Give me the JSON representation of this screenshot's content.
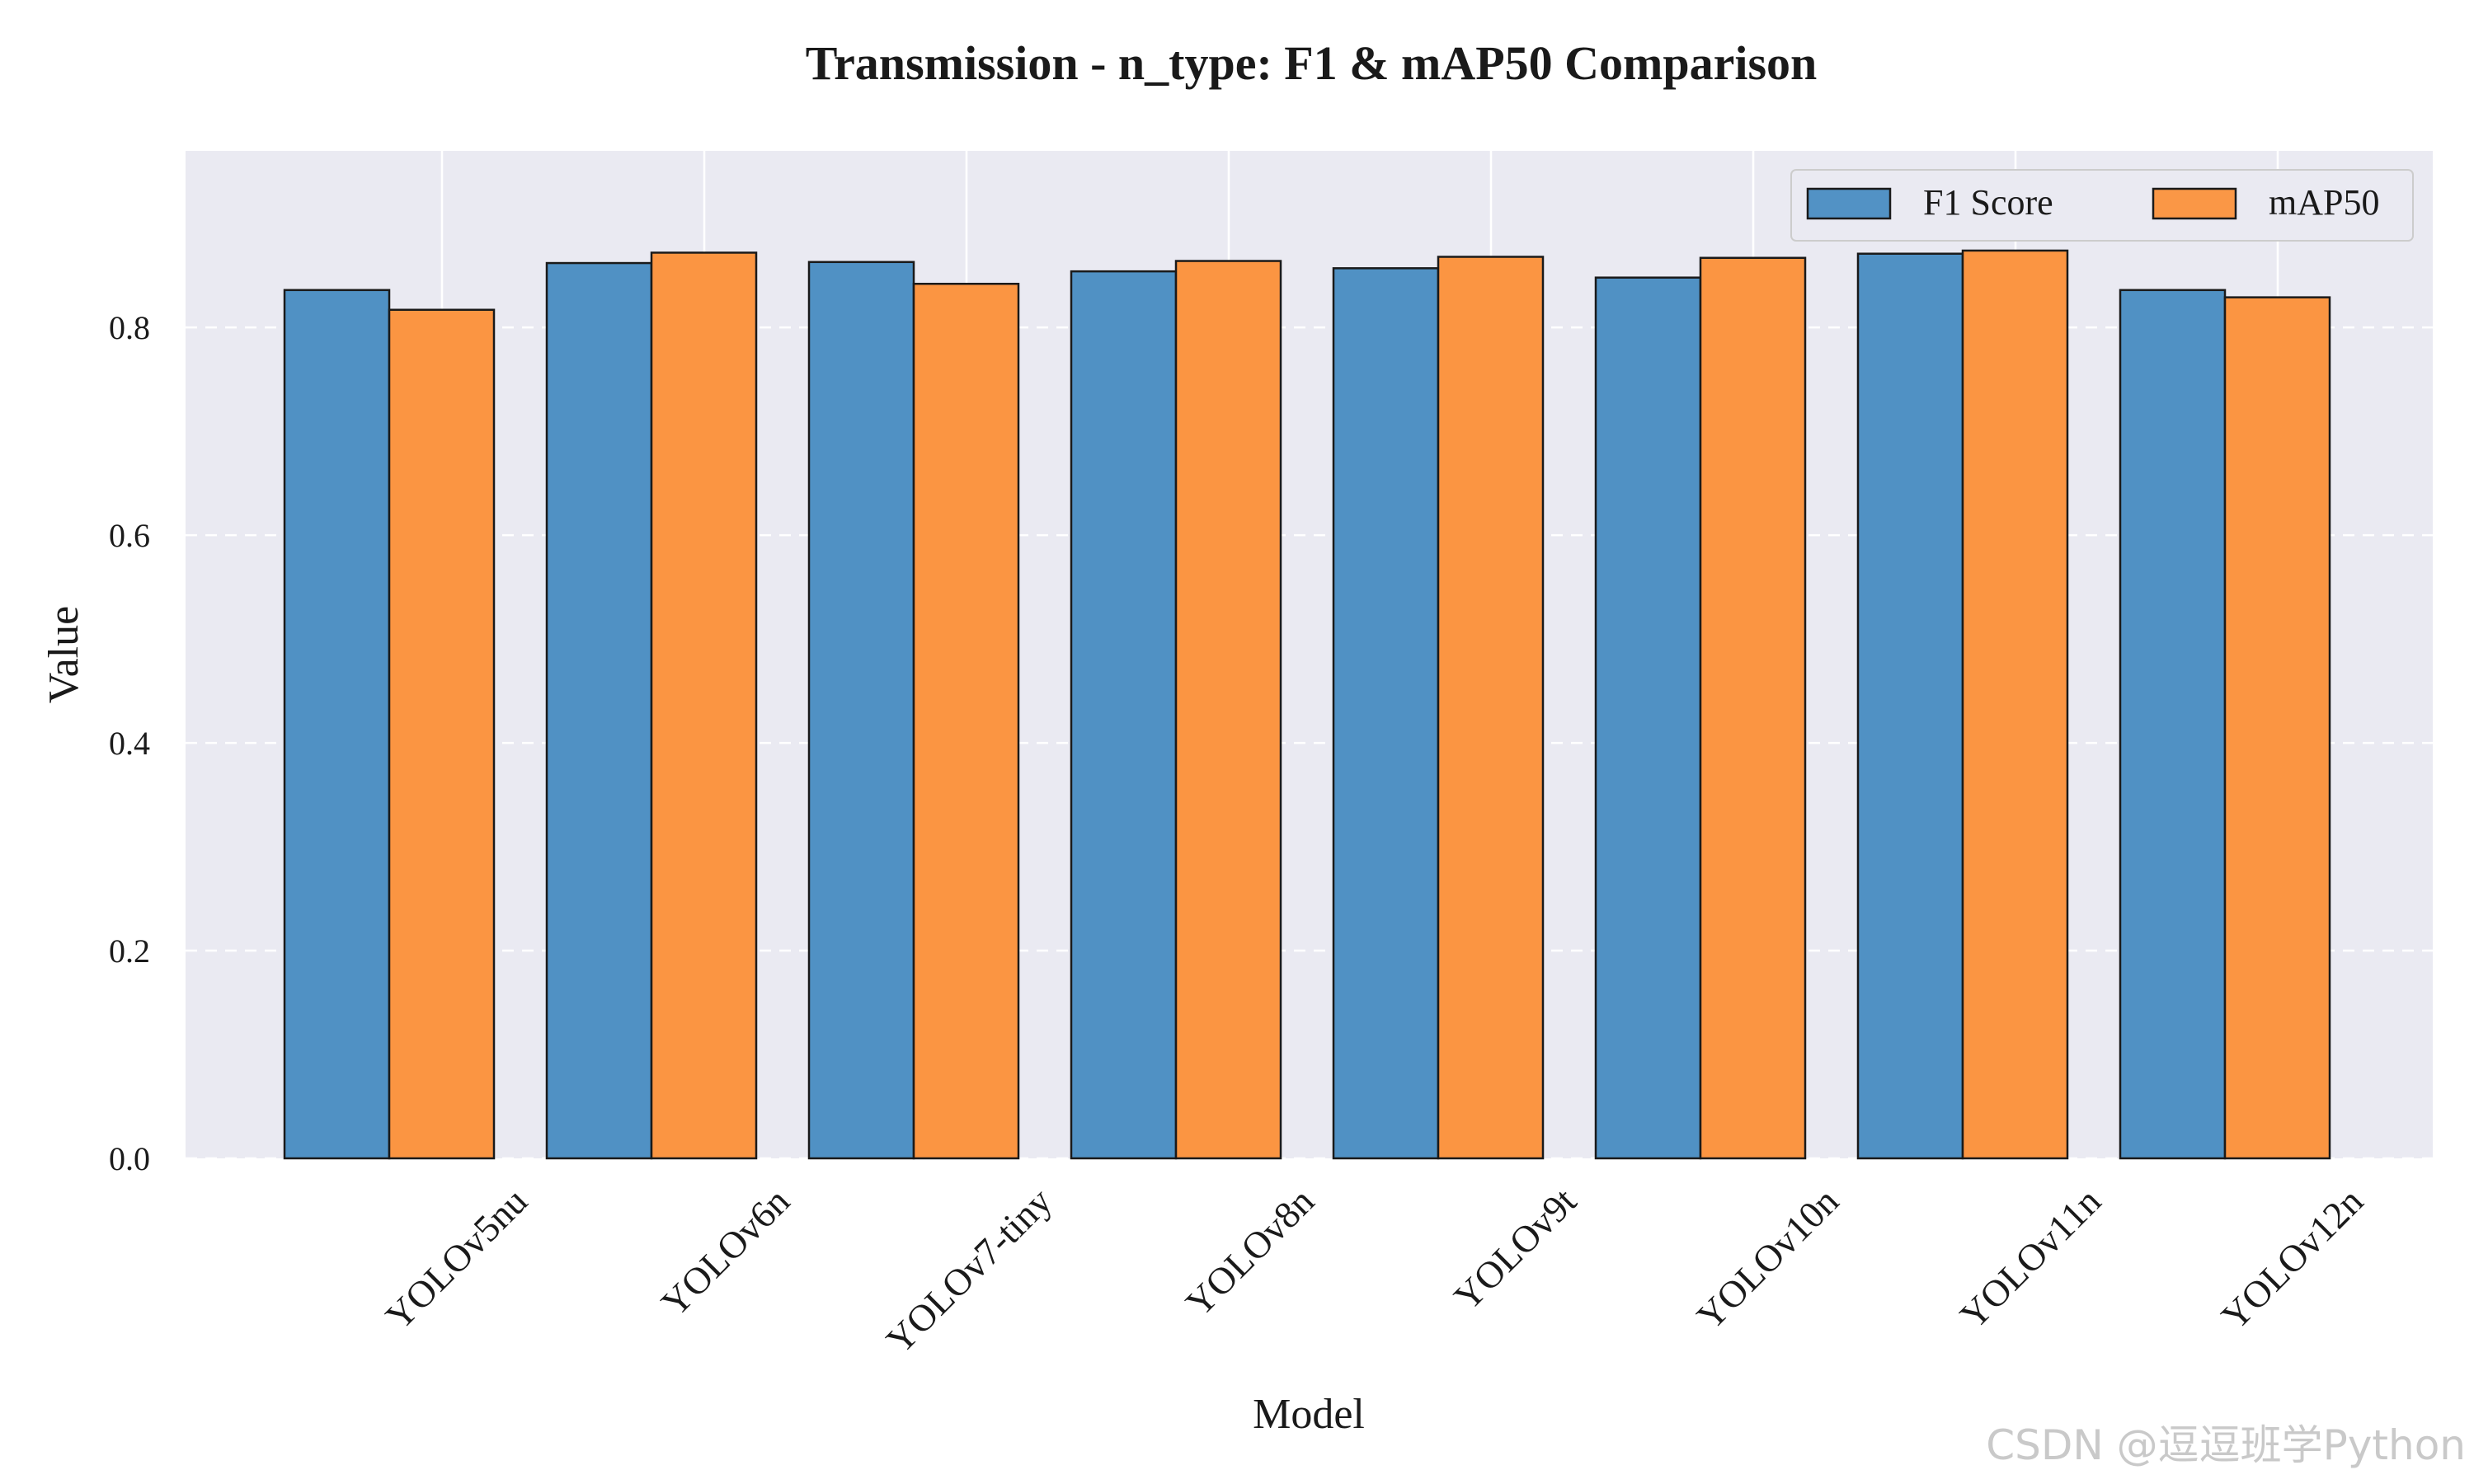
{
  "chart_data": {
    "type": "bar",
    "title": "Transmission - n_type: F1 & mAP50 Comparison",
    "xlabel": "Model",
    "ylabel": "Value",
    "categories": [
      "YOLOv5nu",
      "YOLOv6n",
      "YOLOv7-tiny",
      "YOLOv8n",
      "YOLOv9t",
      "YOLOv10n",
      "YOLOv11n",
      "YOLOv12n"
    ],
    "series": [
      {
        "name": "F1 Score",
        "color": "#4a8dc2",
        "values": [
          0.836,
          0.862,
          0.863,
          0.854,
          0.857,
          0.848,
          0.871,
          0.836
        ]
      },
      {
        "name": "mAP50",
        "color": "#fb923c",
        "values": [
          0.817,
          0.872,
          0.842,
          0.864,
          0.868,
          0.867,
          0.874,
          0.829
        ]
      }
    ],
    "ylim": [
      0,
      0.97
    ],
    "yticks": [
      "0.0",
      "0.2",
      "0.4",
      "0.6",
      "0.8"
    ],
    "grid": true,
    "legend_position": "top-right"
  },
  "watermark": "CSDN @逗逗班学Python"
}
